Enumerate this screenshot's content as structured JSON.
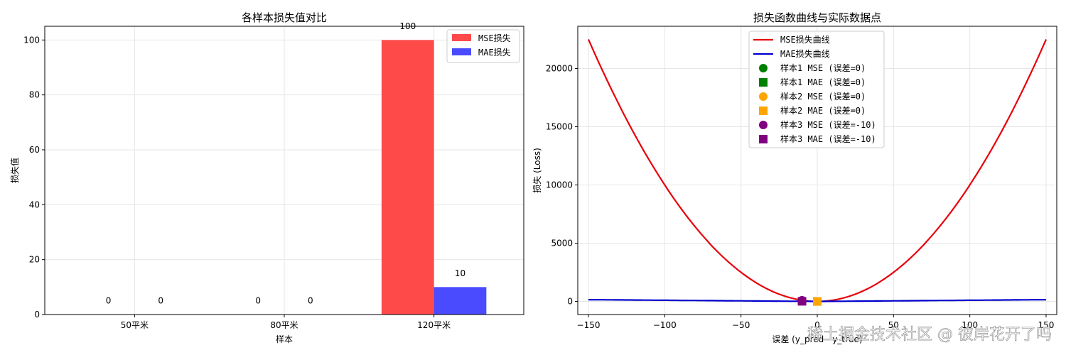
{
  "chart_data": [
    {
      "type": "bar",
      "title": "各样本损失值对比",
      "xlabel": "样本",
      "ylabel": "损失值",
      "categories": [
        "50平米",
        "80平米",
        "120平米"
      ],
      "series": [
        {
          "name": "MSE损失",
          "values": [
            0,
            0,
            100
          ],
          "color": "#ff4a4a",
          "labels": [
            "0",
            "0",
            "100"
          ]
        },
        {
          "name": "MAE损失",
          "values": [
            0,
            0,
            10
          ],
          "color": "#4a4aff",
          "labels": [
            "0",
            "0",
            "10"
          ]
        }
      ],
      "ylim": [
        0,
        105
      ],
      "yticks": [
        0,
        20,
        40,
        60,
        80,
        100
      ],
      "grid": true,
      "legend_position": "top-right"
    },
    {
      "type": "line",
      "title": "损失函数曲线与实际数据点",
      "xlabel": "误差 (y_pred - y_true)",
      "ylabel": "损失 (Loss)",
      "xlim": [
        -157,
        157
      ],
      "ylim": [
        -1125,
        23625
      ],
      "xticks": [
        -150,
        -100,
        -50,
        0,
        50,
        100,
        150
      ],
      "yticks": [
        0,
        5000,
        10000,
        15000,
        20000
      ],
      "x_range": [
        -150,
        150
      ],
      "series": [
        {
          "name": "MSE损失曲线",
          "function": "x^2",
          "color": "#e8000b"
        },
        {
          "name": "MAE损失曲线",
          "function": "|x|",
          "color": "#0000cc"
        }
      ],
      "points": [
        {
          "name": "样本1 MSE (误差=0)",
          "x": 0,
          "y": 0,
          "marker": "circle",
          "color": "#008000"
        },
        {
          "name": "样本1 MAE (误差=0)",
          "x": 0,
          "y": 0,
          "marker": "square",
          "color": "#008000"
        },
        {
          "name": "样本2 MSE (误差=0)",
          "x": 0,
          "y": 0,
          "marker": "circle",
          "color": "#ffa500"
        },
        {
          "name": "样本2 MAE (误差=0)",
          "x": 0,
          "y": 0,
          "marker": "square",
          "color": "#ffa500"
        },
        {
          "name": "样本3 MSE (误差=-10)",
          "x": -10,
          "y": 100,
          "marker": "circle",
          "color": "#800080"
        },
        {
          "name": "样本3 MAE (误差=-10)",
          "x": -10,
          "y": 10,
          "marker": "square",
          "color": "#800080"
        }
      ],
      "grid": true,
      "legend_position": "top-center"
    }
  ],
  "watermark": "稀土掘金技术社区 @ 彼岸花开了吗"
}
